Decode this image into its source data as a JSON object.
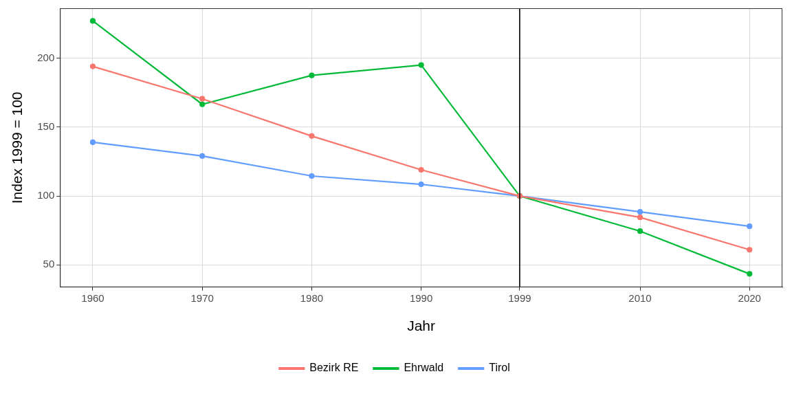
{
  "chart_data": {
    "type": "line",
    "x": [
      1960,
      1970,
      1980,
      1990,
      1999,
      2010,
      2020
    ],
    "series": [
      {
        "name": "Bezirk RE",
        "color": "#F8766D",
        "values": [
          194,
          170.5,
          143.5,
          119,
          100,
          84.5,
          61
        ]
      },
      {
        "name": "Ehrwald",
        "color": "#00BA38",
        "values": [
          227,
          166.5,
          187.5,
          195,
          100,
          74.5,
          43.5
        ]
      },
      {
        "name": "Tirol",
        "color": "#619CFF",
        "values": [
          139,
          129,
          114.5,
          108.5,
          100,
          88.5,
          78
        ]
      }
    ],
    "x_label": "Jahr",
    "y_label": "Index 1999 = 100",
    "xlim": [
      1957,
      2023
    ],
    "xticks": [
      1960,
      1970,
      1980,
      1990,
      1999,
      2010,
      2020
    ],
    "ylim": [
      33.8,
      236.2
    ],
    "yticks": [
      50,
      100,
      150,
      200
    ],
    "vline": 1999,
    "grid": true,
    "legend": "bottom",
    "marker": "circle",
    "line_style": "solid"
  }
}
